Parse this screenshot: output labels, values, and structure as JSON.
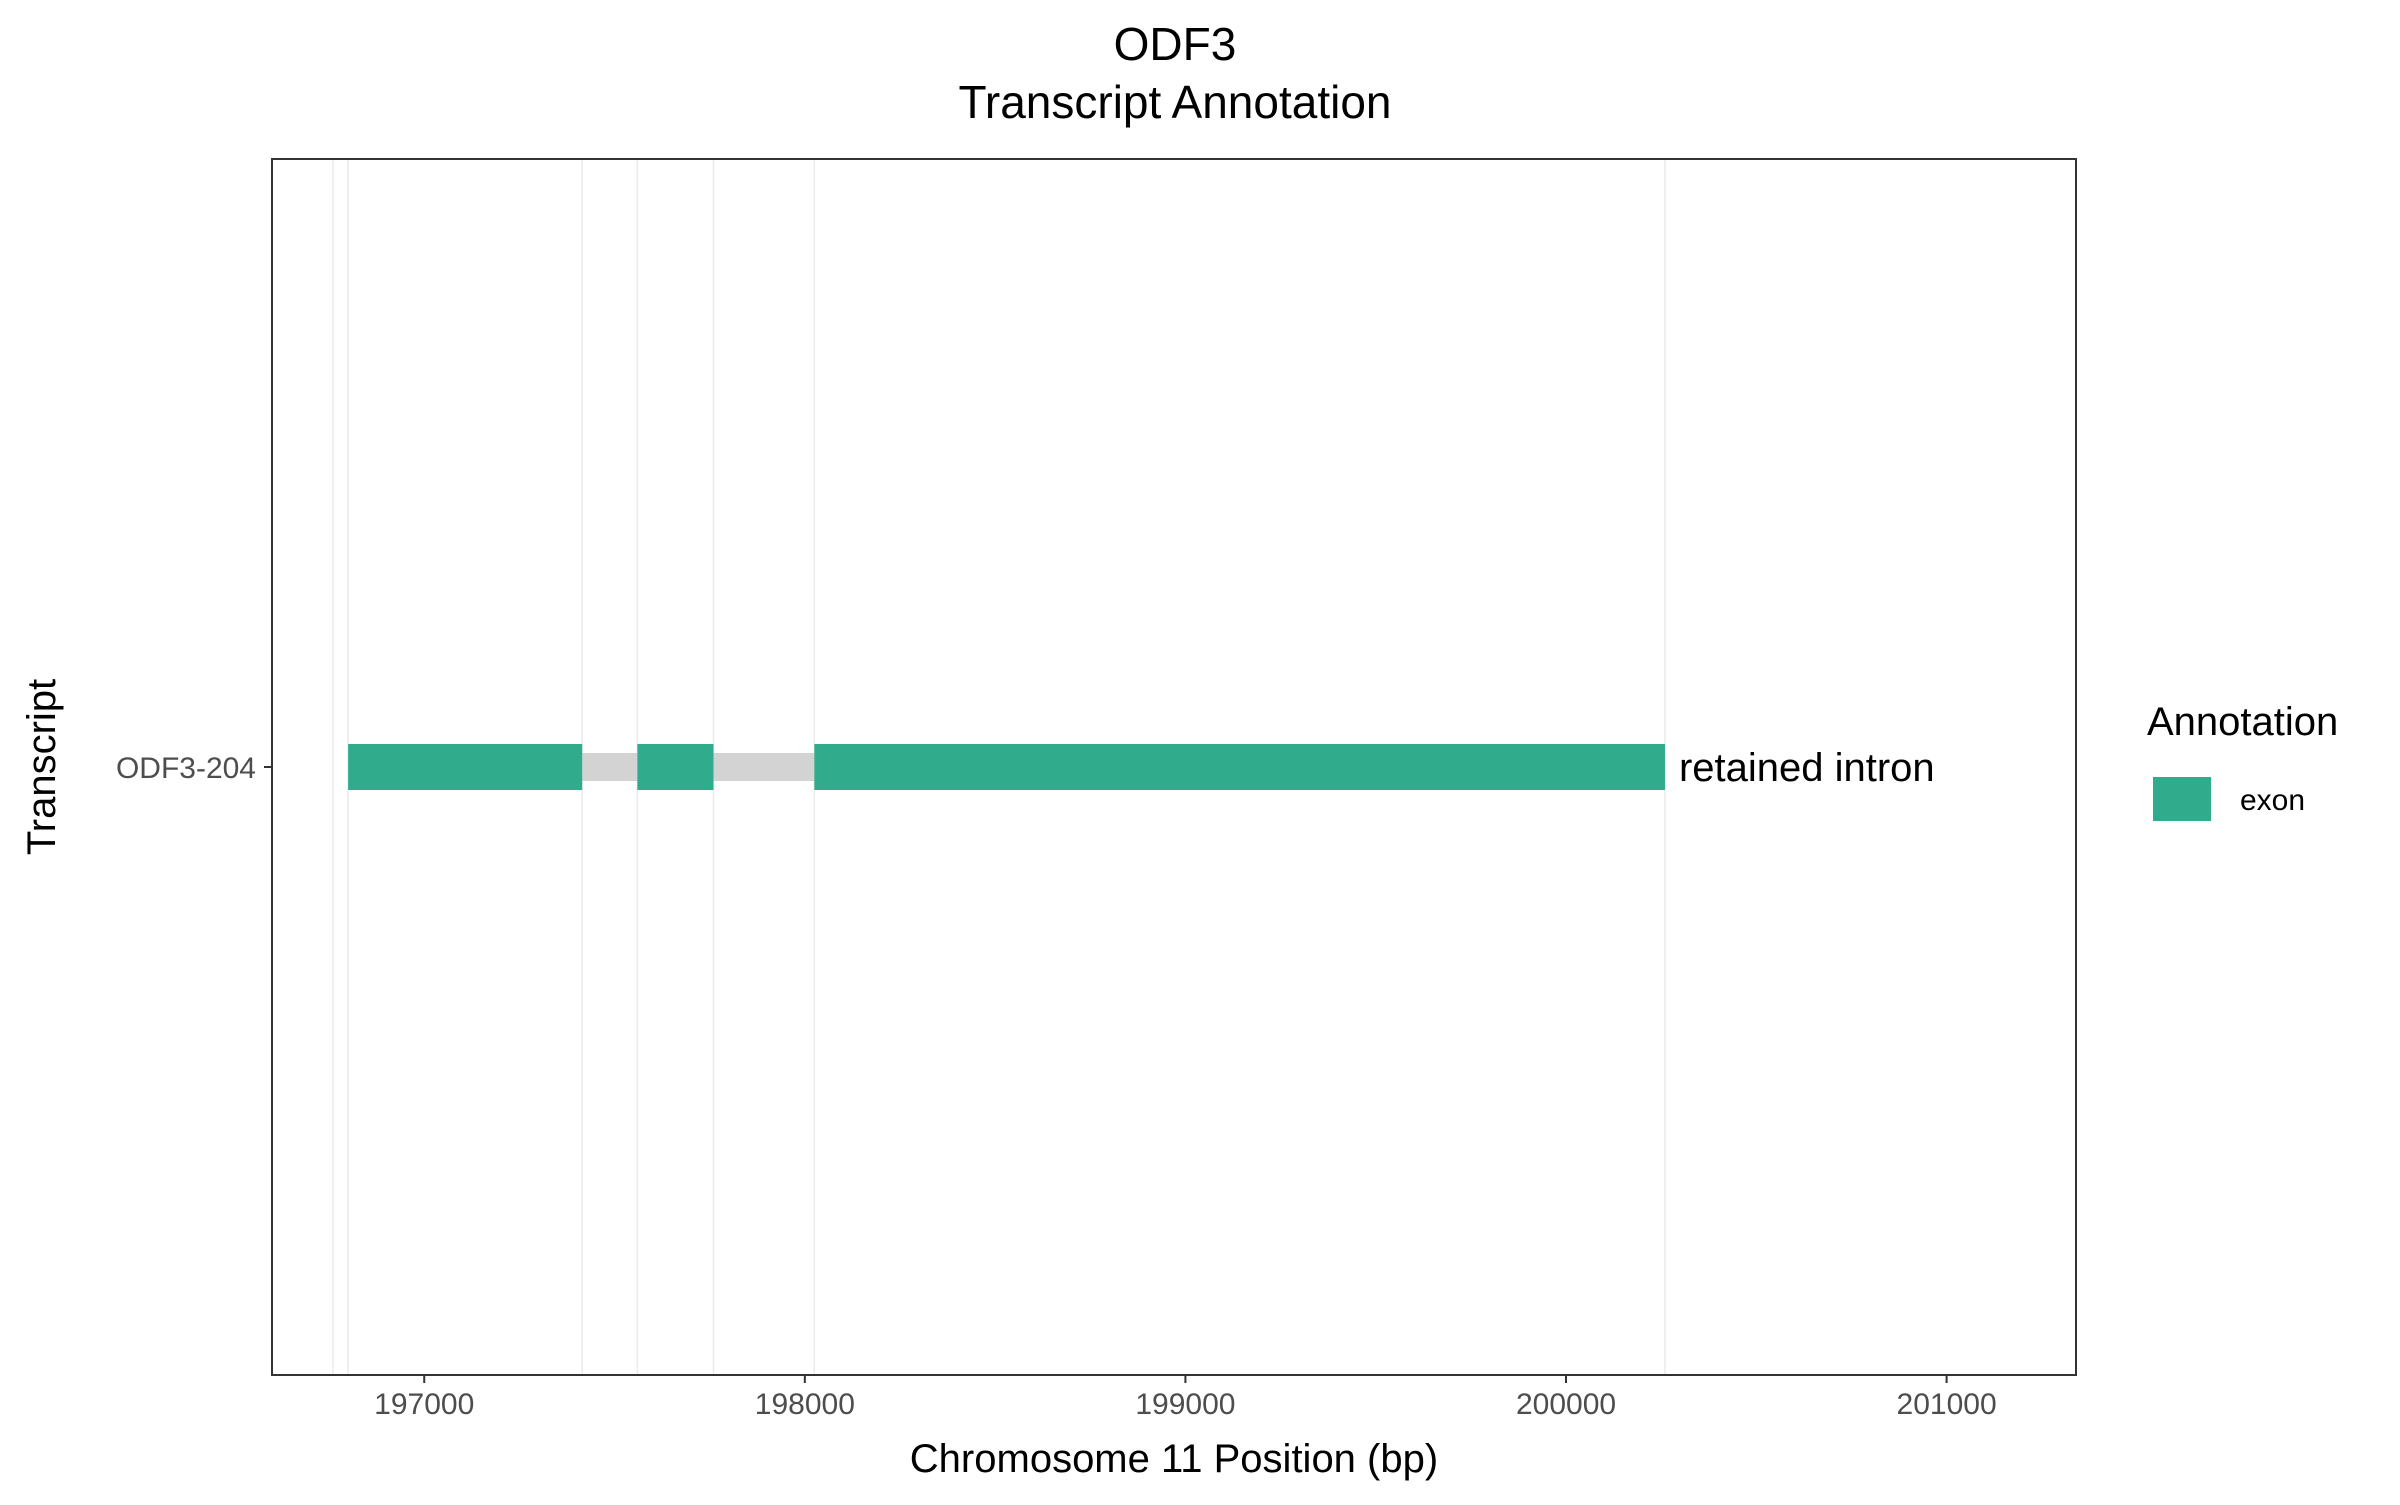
{
  "chart_data": {
    "type": "bar",
    "title": "ODF3",
    "subtitle": "Transcript Annotation",
    "xlabel": "Chromosome 11 Position (bp)",
    "ylabel": "Transcript",
    "xlim": [
      196600,
      201340
    ],
    "x_ticks": [
      197000,
      198000,
      199000,
      200000,
      201000
    ],
    "x_tick_labels": [
      "197000",
      "198000",
      "199000",
      "200000",
      "201000"
    ],
    "minor_gridlines_x": [
      196760,
      196800,
      197415,
      197560,
      197760,
      198025,
      200260
    ],
    "grid": true,
    "categories": [
      "ODF3-204"
    ],
    "transcripts": [
      {
        "name": "ODF3-204",
        "annotation": "retained intron",
        "exons": [
          {
            "start": 196800,
            "end": 197415
          },
          {
            "start": 197560,
            "end": 197760
          },
          {
            "start": 198025,
            "end": 200260
          }
        ],
        "introns": [
          {
            "start": 197415,
            "end": 197560
          },
          {
            "start": 197760,
            "end": 198025
          }
        ]
      }
    ],
    "legend": {
      "title": "Annotation",
      "placement": "right",
      "entries": [
        {
          "label": "exon",
          "color": "#30ab8c"
        }
      ]
    },
    "colors": {
      "exon": "#30ab8c",
      "intron": "#d3d3d3",
      "gridline": "#ebebeb",
      "panel_border": "#333333",
      "tick_label": "#4d4d4d"
    }
  }
}
